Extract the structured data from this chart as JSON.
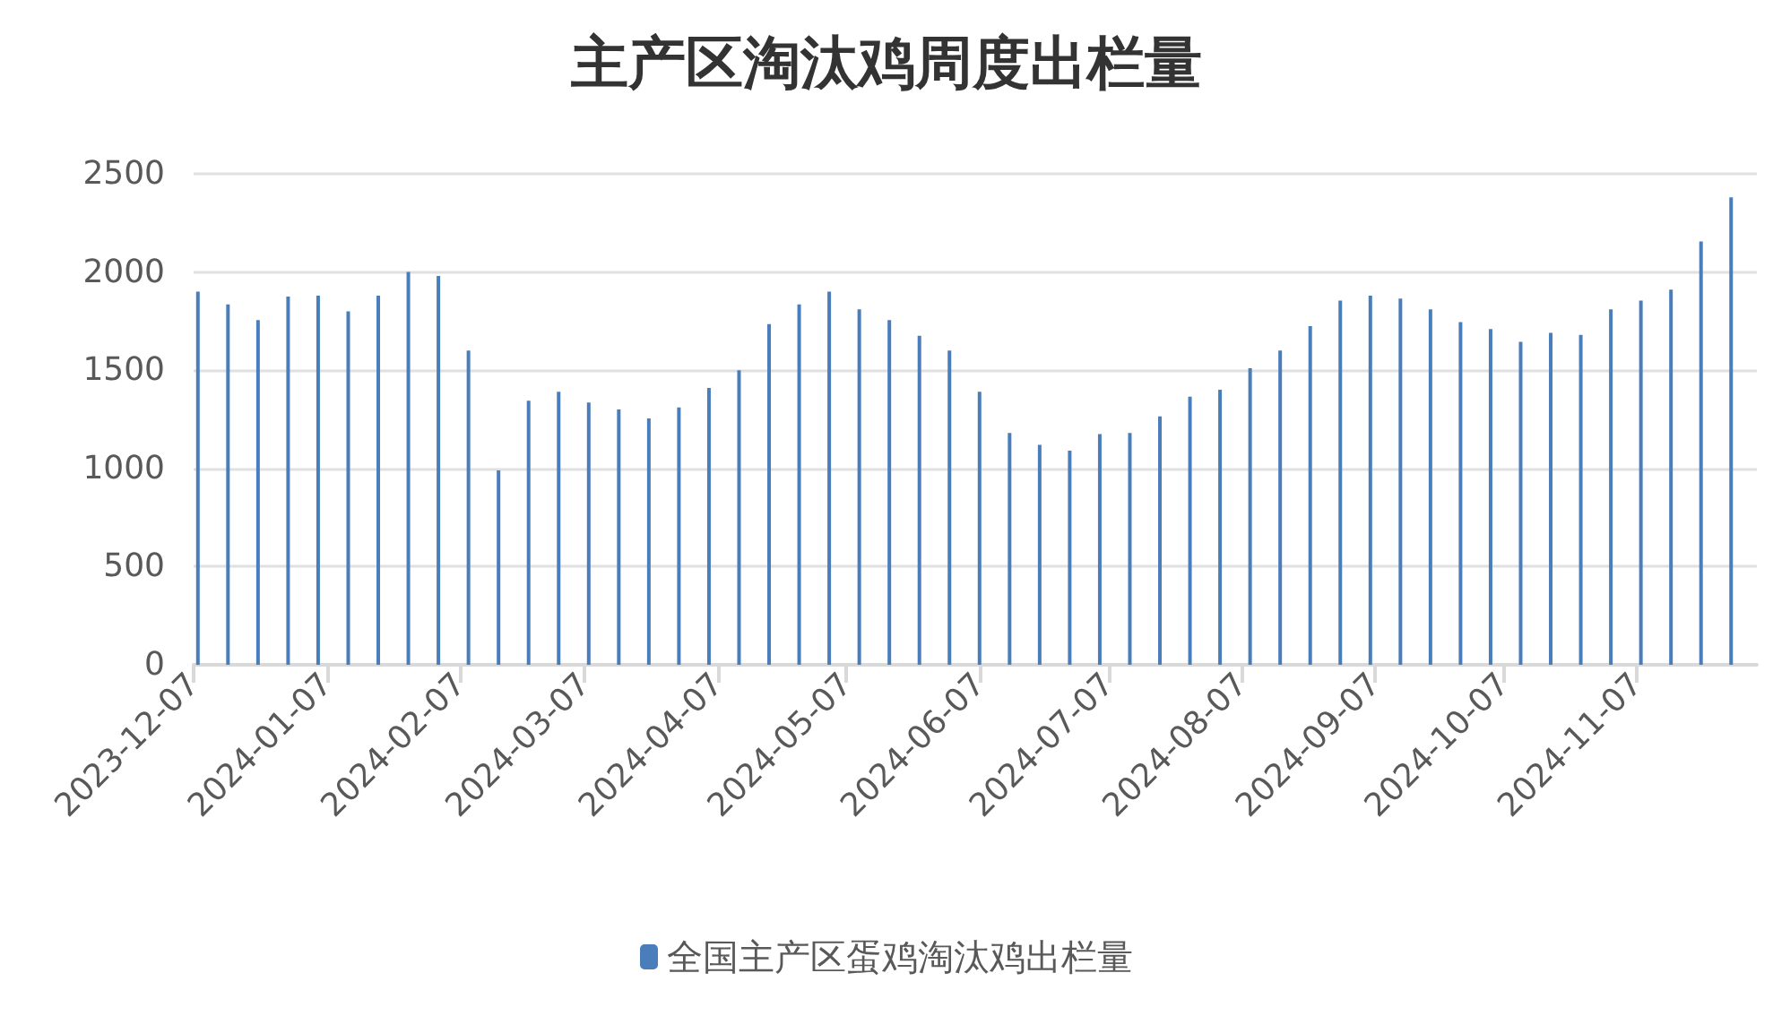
{
  "chart_data": {
    "type": "bar",
    "title": "主产区淘汰鸡周度出栏量",
    "x": [
      "2023-12-08",
      "2023-12-15",
      "2023-12-22",
      "2023-12-29",
      "2024-01-05",
      "2024-01-12",
      "2024-01-19",
      "2024-01-26",
      "2024-02-02",
      "2024-02-09",
      "2024-02-16",
      "2024-02-23",
      "2024-03-01",
      "2024-03-08",
      "2024-03-15",
      "2024-03-22",
      "2024-03-29",
      "2024-04-05",
      "2024-04-12",
      "2024-04-19",
      "2024-04-26",
      "2024-05-03",
      "2024-05-10",
      "2024-05-17",
      "2024-05-24",
      "2024-05-31",
      "2024-06-07",
      "2024-06-14",
      "2024-06-21",
      "2024-06-28",
      "2024-07-05",
      "2024-07-12",
      "2024-07-19",
      "2024-07-26",
      "2024-08-02",
      "2024-08-09",
      "2024-08-16",
      "2024-08-23",
      "2024-08-30",
      "2024-09-06",
      "2024-09-13",
      "2024-09-20",
      "2024-09-27",
      "2024-10-04",
      "2024-10-11",
      "2024-10-18",
      "2024-10-25",
      "2024-11-01",
      "2024-11-08",
      "2024-11-15",
      "2024-11-22",
      "2024-11-29"
    ],
    "series": [
      {
        "name": "全国主产区蛋鸡淘汰鸡出栏量",
        "color": "#4a7ebb",
        "values": [
          1900,
          1835,
          1755,
          1875,
          1880,
          1800,
          1880,
          2000,
          1980,
          1600,
          990,
          1345,
          1390,
          1335,
          1300,
          1255,
          1310,
          1410,
          1500,
          1735,
          1835,
          1900,
          1810,
          1755,
          1675,
          1600,
          1390,
          1180,
          1120,
          1090,
          1175,
          1180,
          1265,
          1365,
          1400,
          1510,
          1600,
          1725,
          1855,
          1880,
          1865,
          1810,
          1745,
          1710,
          1645,
          1690,
          1680,
          1810,
          1855,
          1910,
          2155,
          2380
        ]
      }
    ],
    "xlim": [
      "2023-12-07",
      "2024-12-05"
    ],
    "xticks": [
      "2023-12-07",
      "2024-01-07",
      "2024-02-07",
      "2024-03-07",
      "2024-04-07",
      "2024-05-07",
      "2024-06-07",
      "2024-07-07",
      "2024-08-07",
      "2024-09-07",
      "2024-10-07",
      "2024-11-07"
    ],
    "ylim": [
      0,
      2500
    ],
    "yticks": [
      0,
      500,
      1000,
      1500,
      2000,
      2500
    ],
    "grid": "y",
    "legend": "bottom"
  }
}
